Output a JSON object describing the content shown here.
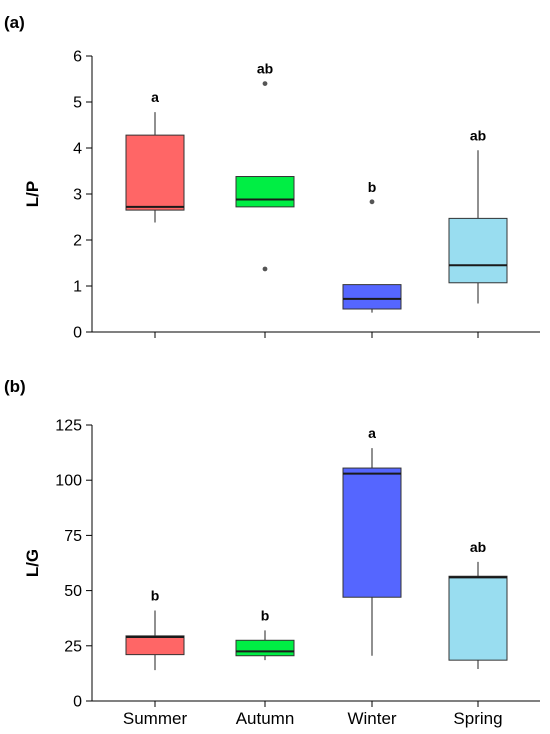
{
  "chart_data": [
    {
      "type": "box",
      "panel_label": "(a)",
      "ylabel": "L/P",
      "ylim": [
        0,
        6
      ],
      "yticks": [
        0,
        1,
        2,
        3,
        4,
        5,
        6
      ],
      "categories": [
        "Summer",
        "Autumn",
        "Winter",
        "Spring"
      ],
      "colors": [
        "#ff6666",
        "#00ee44",
        "#5566ff",
        "#99ddf0"
      ],
      "boxes": [
        {
          "category": "Summer",
          "whisker_low": 2.38,
          "q1": 2.65,
          "median": 2.72,
          "q3": 4.28,
          "whisker_high": 4.78,
          "outliers": [],
          "significance": "a"
        },
        {
          "category": "Autumn",
          "whisker_low": 2.72,
          "q1": 2.72,
          "median": 2.88,
          "q3": 3.38,
          "whisker_high": 3.38,
          "outliers": [
            1.37,
            5.4
          ],
          "significance": "ab"
        },
        {
          "category": "Winter",
          "whisker_low": 0.42,
          "q1": 0.5,
          "median": 0.72,
          "q3": 1.03,
          "whisker_high": 1.03,
          "outliers": [
            2.83
          ],
          "significance": "b"
        },
        {
          "category": "Spring",
          "whisker_low": 0.62,
          "q1": 1.07,
          "median": 1.45,
          "q3": 2.47,
          "whisker_high": 3.95,
          "outliers": [],
          "significance": "ab"
        }
      ]
    },
    {
      "type": "box",
      "panel_label": "(b)",
      "ylabel": "L/G",
      "ylim": [
        0,
        125
      ],
      "yticks": [
        0,
        25,
        50,
        75,
        100,
        125
      ],
      "categories": [
        "Summer",
        "Autumn",
        "Winter",
        "Spring"
      ],
      "colors": [
        "#ff6666",
        "#00ee44",
        "#5566ff",
        "#99ddf0"
      ],
      "boxes": [
        {
          "category": "Summer",
          "whisker_low": 14,
          "q1": 21,
          "median": 29,
          "q3": 29.5,
          "whisker_high": 41,
          "outliers": [],
          "significance": "b"
        },
        {
          "category": "Autumn",
          "whisker_low": 18.5,
          "q1": 20.5,
          "median": 22.5,
          "q3": 27.5,
          "whisker_high": 32,
          "outliers": [],
          "significance": "b"
        },
        {
          "category": "Winter",
          "whisker_low": 20.5,
          "q1": 47,
          "median": 103,
          "q3": 105.5,
          "whisker_high": 114.5,
          "outliers": [],
          "significance": "a"
        },
        {
          "category": "Spring",
          "whisker_low": 14.5,
          "q1": 18.5,
          "median": 56,
          "q3": 56.5,
          "whisker_high": 63,
          "outliers": [],
          "significance": "ab"
        }
      ]
    }
  ]
}
